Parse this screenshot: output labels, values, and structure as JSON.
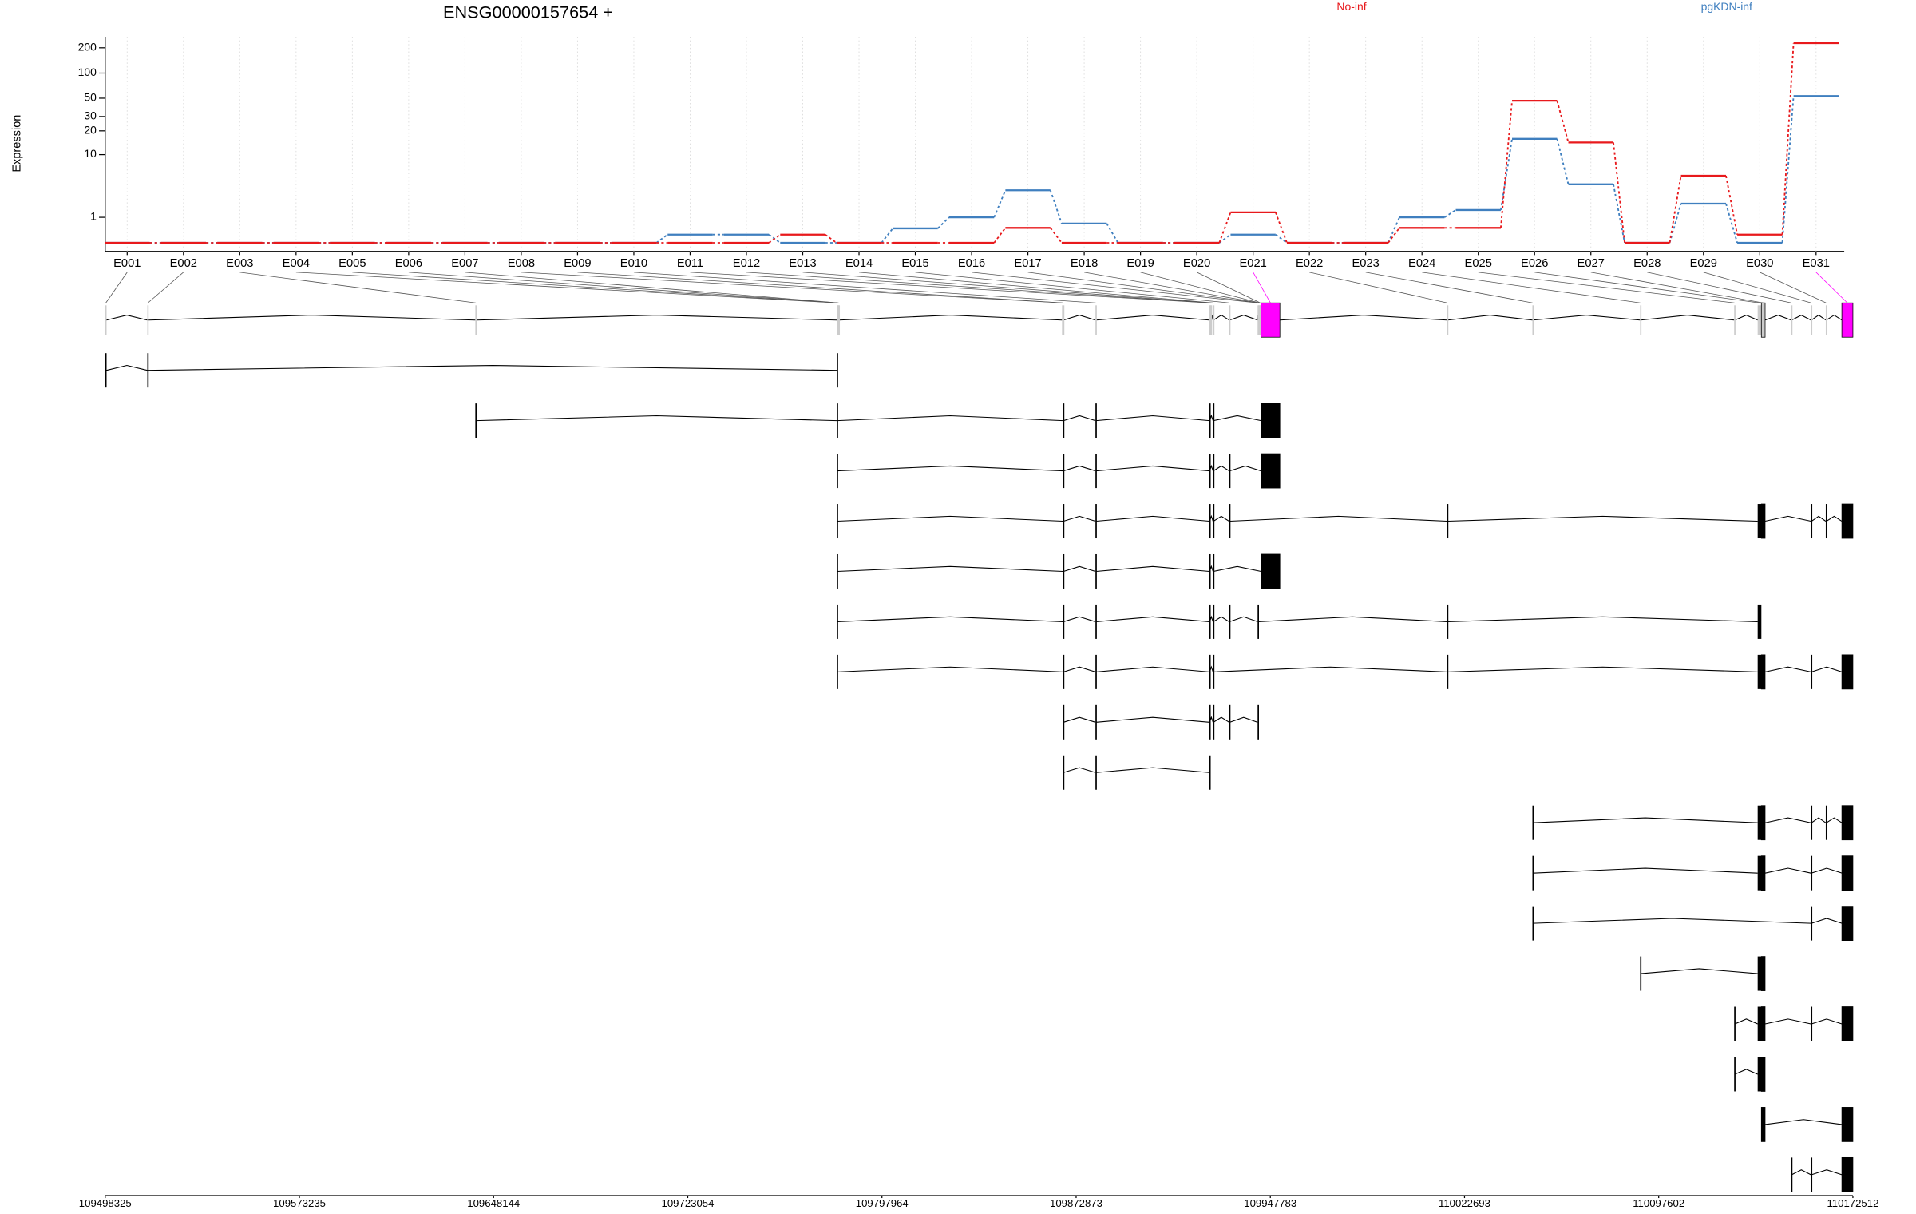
{
  "chart_data": {
    "type": "exon_usage",
    "title": "ENSG00000157654 +",
    "y_label": "Expression",
    "y_scale": "log1p",
    "categories": [
      "E001",
      "E002",
      "E003",
      "E004",
      "E005",
      "E006",
      "E007",
      "E008",
      "E009",
      "E010",
      "E011",
      "E012",
      "E013",
      "E014",
      "E015",
      "E016",
      "E017",
      "E018",
      "E019",
      "E020",
      "E021",
      "E022",
      "E023",
      "E024",
      "E025",
      "E026",
      "E027",
      "E028",
      "E029",
      "E030",
      "E031"
    ],
    "series": [
      {
        "name": "pgKDN-inf",
        "color": "#3f7fbf",
        "values": [
          0,
          0,
          0,
          0,
          0,
          0,
          0,
          0,
          0,
          0,
          0.25,
          0.25,
          0,
          0,
          0.48,
          1,
          3.17,
          0.69,
          0,
          0,
          0.25,
          0,
          0,
          1,
          1.44,
          15.9,
          3.9,
          0,
          1.9,
          0,
          53
        ]
      },
      {
        "name": "No-inf",
        "color": "#e8191c",
        "values": [
          0,
          0,
          0,
          0,
          0,
          0,
          0,
          0,
          0,
          0,
          0,
          0,
          0.25,
          0,
          0,
          0,
          0.5,
          0,
          0,
          0,
          1.29,
          0,
          0,
          0.5,
          0.5,
          46.6,
          14.3,
          0,
          5.2,
          0.25,
          227
        ]
      }
    ],
    "ylim": [
      0,
      270
    ],
    "yticks": [
      1,
      10,
      20,
      30,
      50,
      100,
      200
    ],
    "grid": true,
    "xlim": [
      109498325,
      110172512
    ],
    "xticks": [
      109498325,
      109573235,
      109648144,
      109723054,
      109797964,
      109872873,
      109947783,
      110022693,
      110097602,
      110172512
    ],
    "exons": [
      [
        109498325,
        109498800
      ],
      [
        109514560,
        109515000
      ],
      [
        109641097,
        109641500
      ],
      [
        109780527,
        109780700
      ],
      [
        109780750,
        109780900
      ],
      [
        109781000,
        109781150
      ],
      [
        109781200,
        109781400
      ],
      [
        109867433,
        109867700
      ],
      [
        109867800,
        109868000
      ],
      [
        109880325,
        109880600
      ],
      [
        109924255,
        109924400
      ],
      [
        109924500,
        109924650
      ],
      [
        109924800,
        109924950
      ],
      [
        109925687,
        109925850
      ],
      [
        109931895,
        109932100
      ],
      [
        109942877,
        109943000
      ],
      [
        109943100,
        109943250
      ],
      [
        109943350,
        109943500
      ],
      [
        109943600,
        109943750
      ],
      [
        109943850,
        109944000
      ],
      [
        109944200,
        109951472
      ],
      [
        110015935,
        110016200
      ],
      [
        110048882,
        110049100
      ],
      [
        110090425,
        110090650
      ],
      [
        110126715,
        110127000
      ],
      [
        110135787,
        110137208
      ],
      [
        110137208,
        110138652
      ],
      [
        110148680,
        110148900
      ],
      [
        110156320,
        110156550
      ],
      [
        110162050,
        110162300
      ],
      [
        110168257,
        110172512
      ]
    ],
    "transcripts": [
      [
        0,
        1,
        3
      ],
      [
        2,
        3,
        8,
        9,
        10,
        13,
        20
      ],
      [
        3,
        8,
        9,
        10,
        13,
        14,
        20
      ],
      [
        3,
        8,
        9,
        10,
        13,
        14,
        21,
        25,
        26,
        28,
        29,
        30
      ],
      [
        3,
        8,
        9,
        10,
        13,
        20
      ],
      [
        3,
        8,
        9,
        10,
        13,
        14,
        15,
        21,
        25
      ],
      [
        3,
        8,
        9,
        10,
        13,
        21,
        25,
        26,
        28,
        30
      ],
      [
        8,
        9,
        10,
        13,
        14,
        15
      ],
      [
        8,
        9,
        10
      ],
      [
        22,
        25,
        26,
        28,
        29,
        30
      ],
      [
        22,
        25,
        26,
        28,
        30
      ],
      [
        22,
        28,
        30
      ],
      [
        23,
        25,
        26
      ],
      [
        24,
        25,
        26,
        28,
        30
      ],
      [
        24,
        25,
        26
      ],
      [
        26,
        30
      ],
      [
        27,
        28,
        30
      ]
    ],
    "highlight_exons": [
      20,
      30
    ],
    "highlight_color": "#ff00ff"
  }
}
